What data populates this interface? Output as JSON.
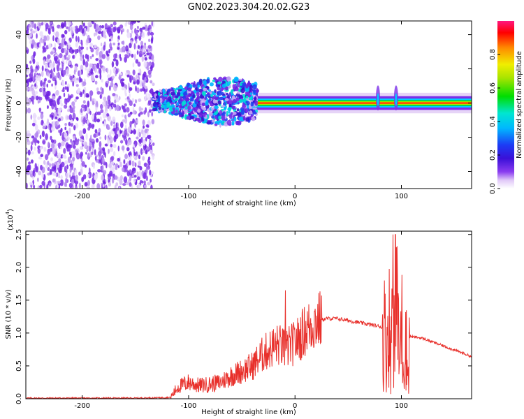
{
  "title": "GN02.2023.304.20.02.G23",
  "colors": {
    "snr_line": "#e8302b",
    "colormap": [
      "#ffffff",
      "#e6d4f7",
      "#b07ff0",
      "#7a2fe8",
      "#3a12d0",
      "#1f2ff0",
      "#00b7ff",
      "#00e5c8",
      "#00dd00",
      "#9be000",
      "#e8e800",
      "#ff8800",
      "#ff0000",
      "#ff1480"
    ]
  },
  "chart_data": [
    {
      "type": "heatmap",
      "name": "spectrogram",
      "xlabel": "Height of straight line (km)",
      "ylabel": "Frequency (Hz)",
      "xlim": [
        -253,
        166
      ],
      "ylim": [
        -50,
        48
      ],
      "xticks": [
        -200,
        -100,
        0,
        100
      ],
      "yticks": [
        -40,
        -20,
        0,
        20,
        40
      ],
      "colorbar": {
        "label": "Normalized spectral amplitude",
        "range": [
          0,
          1
        ],
        "ticks": [
          "0.0",
          "0.2",
          "0.4",
          "0.6",
          "0.8"
        ]
      },
      "features": {
        "noise_region_x": [
          -253,
          -133
        ],
        "transition_region_x": [
          -133,
          -35
        ],
        "signal_line_x": [
          -35,
          166
        ],
        "signal_frequency": 0,
        "bursts_x": [
          78,
          95
        ]
      }
    },
    {
      "type": "line",
      "name": "snr",
      "xlabel": "Height of straight line (km)",
      "ylabel": "SNR (10 * v/v)",
      "y_multiplier": "(x10",
      "y_multiplier_exp": "4",
      "y_multiplier_close": ")",
      "xlim": [
        -253,
        166
      ],
      "ylim": [
        0,
        2.55
      ],
      "xticks": [
        -200,
        -100,
        0,
        100
      ],
      "yticks": [
        "0.0",
        "0.5",
        "1.0",
        "1.5",
        "2.0",
        "2.5"
      ],
      "series": [
        {
          "x": [
            -253,
            -200,
            -150,
            -117,
            -110,
            -100,
            -90,
            -80,
            -70,
            -60,
            -50,
            -40,
            -30,
            -20,
            -15,
            -10,
            0,
            10,
            20,
            30,
            40,
            50,
            60,
            70,
            80,
            84,
            86,
            88,
            90,
            92,
            94,
            96,
            98,
            100,
            102,
            104,
            106,
            108,
            120,
            130,
            140,
            150,
            160,
            166
          ],
          "y": [
            0.01,
            0.01,
            0.01,
            0.02,
            0.18,
            0.25,
            0.2,
            0.22,
            0.25,
            0.35,
            0.42,
            0.5,
            0.68,
            0.8,
            0.82,
            0.75,
            0.85,
            1.05,
            1.18,
            1.22,
            1.22,
            1.19,
            1.16,
            1.13,
            1.1,
            1.05,
            0.7,
            1.4,
            0.5,
            2.1,
            0.55,
            1.75,
            0.4,
            1.3,
            0.45,
            1.0,
            0.3,
            0.95,
            0.92,
            0.86,
            0.8,
            0.74,
            0.68,
            0.64
          ]
        }
      ]
    }
  ]
}
